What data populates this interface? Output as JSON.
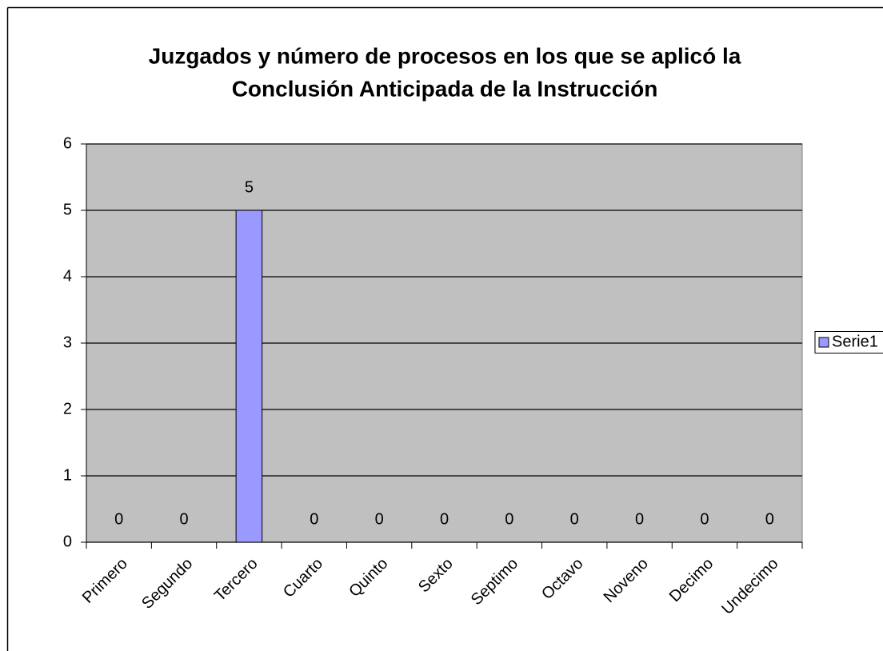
{
  "chart_data": {
    "type": "bar",
    "title": [
      "Juzgados y número de procesos en los que se aplicó la",
      "Conclusión Anticipada de la Instrucción"
    ],
    "categories": [
      "Primero",
      "Segundo",
      "Tercero",
      "Cuarto",
      "Quinto",
      "Sexto",
      "Septimo",
      "Octavo",
      "Noveno",
      "Decimo",
      "Undecimo"
    ],
    "series": [
      {
        "name": "Serie1",
        "color": "#9999ff",
        "values": [
          0,
          0,
          5,
          0,
          0,
          0,
          0,
          0,
          0,
          0,
          0
        ]
      }
    ],
    "ylim": [
      0,
      6
    ],
    "yticks": [
      0,
      1,
      2,
      3,
      4,
      5,
      6
    ],
    "grid": true,
    "legend": "right"
  }
}
